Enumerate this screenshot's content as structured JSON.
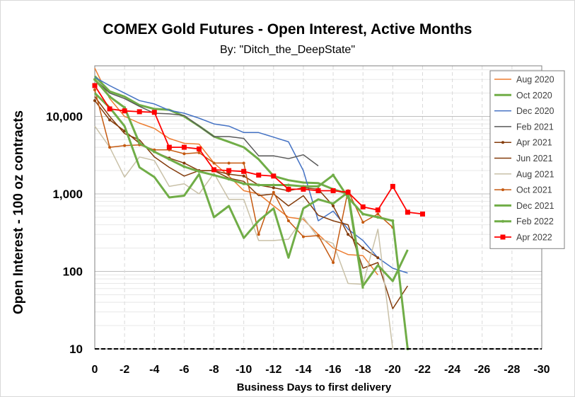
{
  "chart_data": {
    "type": "line",
    "title": "COMEX Gold Futures - Open Interest, Active Months",
    "subtitle": "By: \"Ditch_the_DeepState\"",
    "xlabel": "Business Days to first delivery",
    "ylabel": "Open Interest - 100 oz contracts",
    "yscale": "log",
    "xlim": [
      0,
      -30
    ],
    "ylim": [
      10,
      45000
    ],
    "x_ticks": [
      0,
      -2,
      -4,
      -6,
      -8,
      -10,
      -12,
      -14,
      -16,
      -18,
      -20,
      -22,
      -24,
      -26,
      -28,
      -30
    ],
    "x_tick_labels": [
      "0",
      "-2",
      "-4",
      "-6",
      "-8",
      "-10",
      "-12",
      "-14",
      "-16",
      "-18",
      "-20",
      "-22",
      "-24",
      "-26",
      "-28",
      "-30"
    ],
    "y_ticks": [
      10,
      100,
      1000,
      10000
    ],
    "y_tick_labels": [
      "10",
      "100",
      "1,000",
      "10,000"
    ],
    "grid": true,
    "legend_position": "right",
    "series": [
      {
        "name": "Aug 2020",
        "color": "#ed7d31",
        "width": 1.5,
        "marker": "none",
        "x": [
          0,
          -1,
          -2,
          -3,
          -4,
          -5,
          -6,
          -7,
          -8,
          -9,
          -10,
          -11,
          -12,
          -13,
          -14,
          -15,
          -16,
          -17,
          -18,
          -19
        ],
        "y": [
          42000,
          17000,
          10000,
          8200,
          7000,
          5200,
          4500,
          4400,
          2500,
          1700,
          1100,
          1000,
          700,
          500,
          470,
          300,
          200,
          165,
          160,
          90
        ]
      },
      {
        "name": "Oct 2020",
        "color": "#70ad47",
        "width": 3,
        "marker": "none",
        "x": [
          0,
          -1,
          -2,
          -3,
          -4,
          -5,
          -6,
          -7,
          -8,
          -9,
          -10,
          -11,
          -12,
          -13,
          -14,
          -15,
          -16,
          -17,
          -18
        ],
        "y": [
          33000,
          21000,
          18000,
          14000,
          12500,
          12200,
          10000,
          7500,
          5500,
          4700,
          4000,
          2800,
          1700,
          1500,
          1400,
          1380,
          1150,
          1000,
          60
        ]
      },
      {
        "name": "Dec 2020",
        "color": "#4472c4",
        "width": 1.5,
        "marker": "none",
        "x": [
          0,
          -1,
          -2,
          -3,
          -4,
          -5,
          -6,
          -7,
          -8,
          -9,
          -10,
          -11,
          -12,
          -13,
          -14,
          -15,
          -16,
          -17,
          -18,
          -19,
          -20,
          -21
        ],
        "y": [
          32000,
          25000,
          20000,
          16000,
          14500,
          12000,
          11000,
          9500,
          8000,
          7500,
          6200,
          6200,
          5400,
          4700,
          2000,
          450,
          600,
          350,
          250,
          150,
          110,
          95
        ]
      },
      {
        "name": "Feb 2021",
        "color": "#595959",
        "width": 1.5,
        "marker": "none",
        "x": [
          0,
          -1,
          -2,
          -3,
          -4,
          -5,
          -6,
          -7,
          -8,
          -9,
          -10,
          -11,
          -12,
          -13,
          -14,
          -15
        ],
        "y": [
          30000,
          20000,
          17000,
          13500,
          11000,
          10800,
          10300,
          7500,
          5500,
          5500,
          5200,
          3100,
          3100,
          2850,
          3200,
          2300
        ]
      },
      {
        "name": "Apr 2021",
        "color": "#843c0c",
        "width": 1.5,
        "marker": "dot",
        "x": [
          0,
          -1,
          -2,
          -3,
          -4,
          -5,
          -6,
          -7,
          -8,
          -9,
          -10,
          -11,
          -12,
          -13,
          -14,
          -15,
          -16,
          -17,
          -18,
          -19
        ],
        "y": [
          16000,
          9000,
          6500,
          4500,
          3500,
          2900,
          2500,
          2000,
          2000,
          1800,
          1700,
          1300,
          1200,
          1100,
          1200,
          1150,
          700,
          300,
          200,
          150
        ]
      },
      {
        "name": "Jun 2021",
        "color": "#843c0c",
        "width": 1.5,
        "marker": "none",
        "x": [
          0,
          -1,
          -2,
          -3,
          -4,
          -5,
          -6,
          -7,
          -8,
          -9,
          -10,
          -11,
          -12,
          -13,
          -14,
          -15,
          -16,
          -17,
          -18,
          -19,
          -20,
          -21
        ],
        "y": [
          18000,
          10000,
          6000,
          5000,
          3000,
          2200,
          1700,
          2000,
          2000,
          1600,
          1450,
          950,
          1000,
          700,
          950,
          530,
          450,
          400,
          110,
          130,
          33,
          65
        ]
      },
      {
        "name": "Aug 2021",
        "color": "#c9c1a8",
        "width": 1.5,
        "marker": "none",
        "x": [
          0,
          -1,
          -2,
          -3,
          -4,
          -5,
          -6,
          -7,
          -8,
          -9,
          -10,
          -11,
          -12,
          -13,
          -14,
          -15,
          -16,
          -17,
          -18,
          -19,
          -20
        ],
        "y": [
          7500,
          4000,
          1650,
          3000,
          2700,
          1250,
          1350,
          1000,
          1850,
          850,
          850,
          250,
          250,
          260,
          500,
          270,
          230,
          70,
          68,
          350,
          10
        ]
      },
      {
        "name": "Oct 2021",
        "color": "#c55a11",
        "width": 1.5,
        "marker": "dot",
        "x": [
          0,
          -1,
          -2,
          -3,
          -4,
          -5,
          -6,
          -7,
          -8,
          -9,
          -10,
          -11,
          -12,
          -13,
          -14,
          -15,
          -16,
          -17,
          -18,
          -19,
          -20
        ],
        "y": [
          22000,
          4000,
          4200,
          4300,
          3700,
          3700,
          3300,
          3400,
          2500,
          2500,
          2500,
          300,
          1050,
          450,
          280,
          290,
          130,
          1100,
          430,
          550,
          370
        ]
      },
      {
        "name": "Dec 2021",
        "color": "#70ad47",
        "width": 3,
        "marker": "none",
        "x": [
          0,
          -1,
          -2,
          -3,
          -4,
          -5,
          -6,
          -7,
          -8,
          -9,
          -10,
          -11,
          -12,
          -13,
          -14,
          -15,
          -16,
          -17,
          -18,
          -19,
          -20,
          -21
        ],
        "y": [
          20000,
          13000,
          7500,
          2200,
          1650,
          900,
          950,
          1800,
          500,
          700,
          270,
          450,
          650,
          150,
          650,
          850,
          750,
          1050,
          65,
          120,
          75,
          190
        ]
      },
      {
        "name": "Feb 2022",
        "color": "#70ad47",
        "width": 3,
        "marker": "dot",
        "x": [
          0,
          -1,
          -2,
          -3,
          -4,
          -5,
          -6,
          -7,
          -8,
          -9,
          -10,
          -11,
          -12,
          -13,
          -14,
          -15,
          -16,
          -17,
          -18,
          -19,
          -20,
          -21
        ],
        "y": [
          30000,
          18000,
          13000,
          4500,
          3500,
          2800,
          2250,
          1950,
          1750,
          1550,
          1350,
          1300,
          1300,
          1300,
          1250,
          1250,
          1750,
          900,
          550,
          500,
          450,
          10
        ]
      },
      {
        "name": "Apr 2022",
        "color": "#ff0000",
        "width": 1.8,
        "marker": "square",
        "x": [
          0,
          -1,
          -2,
          -3,
          -4,
          -5,
          -6,
          -7,
          -8,
          -9,
          -10,
          -11,
          -12,
          -13,
          -14,
          -15,
          -16,
          -17,
          -18,
          -19,
          -20,
          -21,
          -22
        ],
        "y": [
          25000,
          12500,
          11800,
          11500,
          11300,
          4000,
          4000,
          3800,
          2050,
          2000,
          1950,
          1750,
          1700,
          1150,
          1150,
          1100,
          1100,
          1050,
          680,
          620,
          1250,
          580,
          550
        ]
      }
    ]
  }
}
